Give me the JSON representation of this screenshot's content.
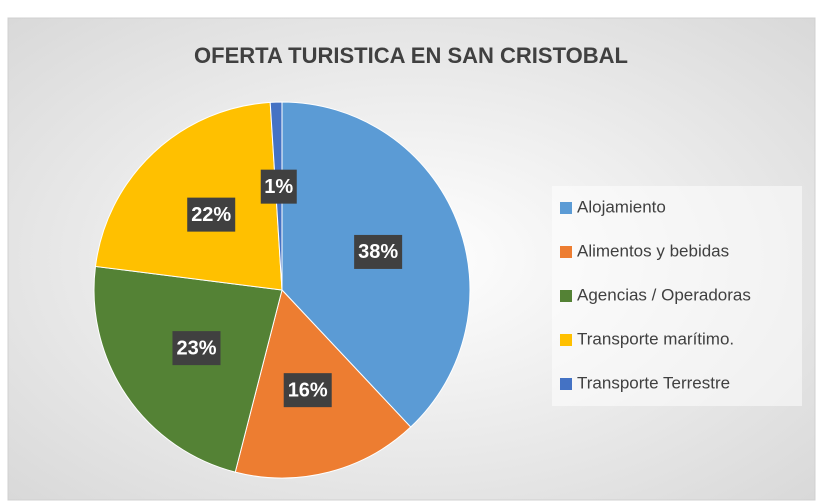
{
  "chart_data": {
    "type": "pie",
    "title": "OFERTA TURISTICA EN SAN CRISTOBAL",
    "categories": [
      "Alojamiento",
      "Alimentos y bebidas",
      "Agencias / Operadoras",
      "Transporte marítimo.",
      "Transporte Terrestre"
    ],
    "values": [
      38,
      16,
      23,
      22,
      1
    ],
    "value_labels": [
      "38%",
      "16%",
      "23%",
      "22%",
      "1%"
    ],
    "colors": [
      "#5b9bd5",
      "#ed7d31",
      "#548235",
      "#ffc000",
      "#4472c4"
    ],
    "legend": "right"
  }
}
